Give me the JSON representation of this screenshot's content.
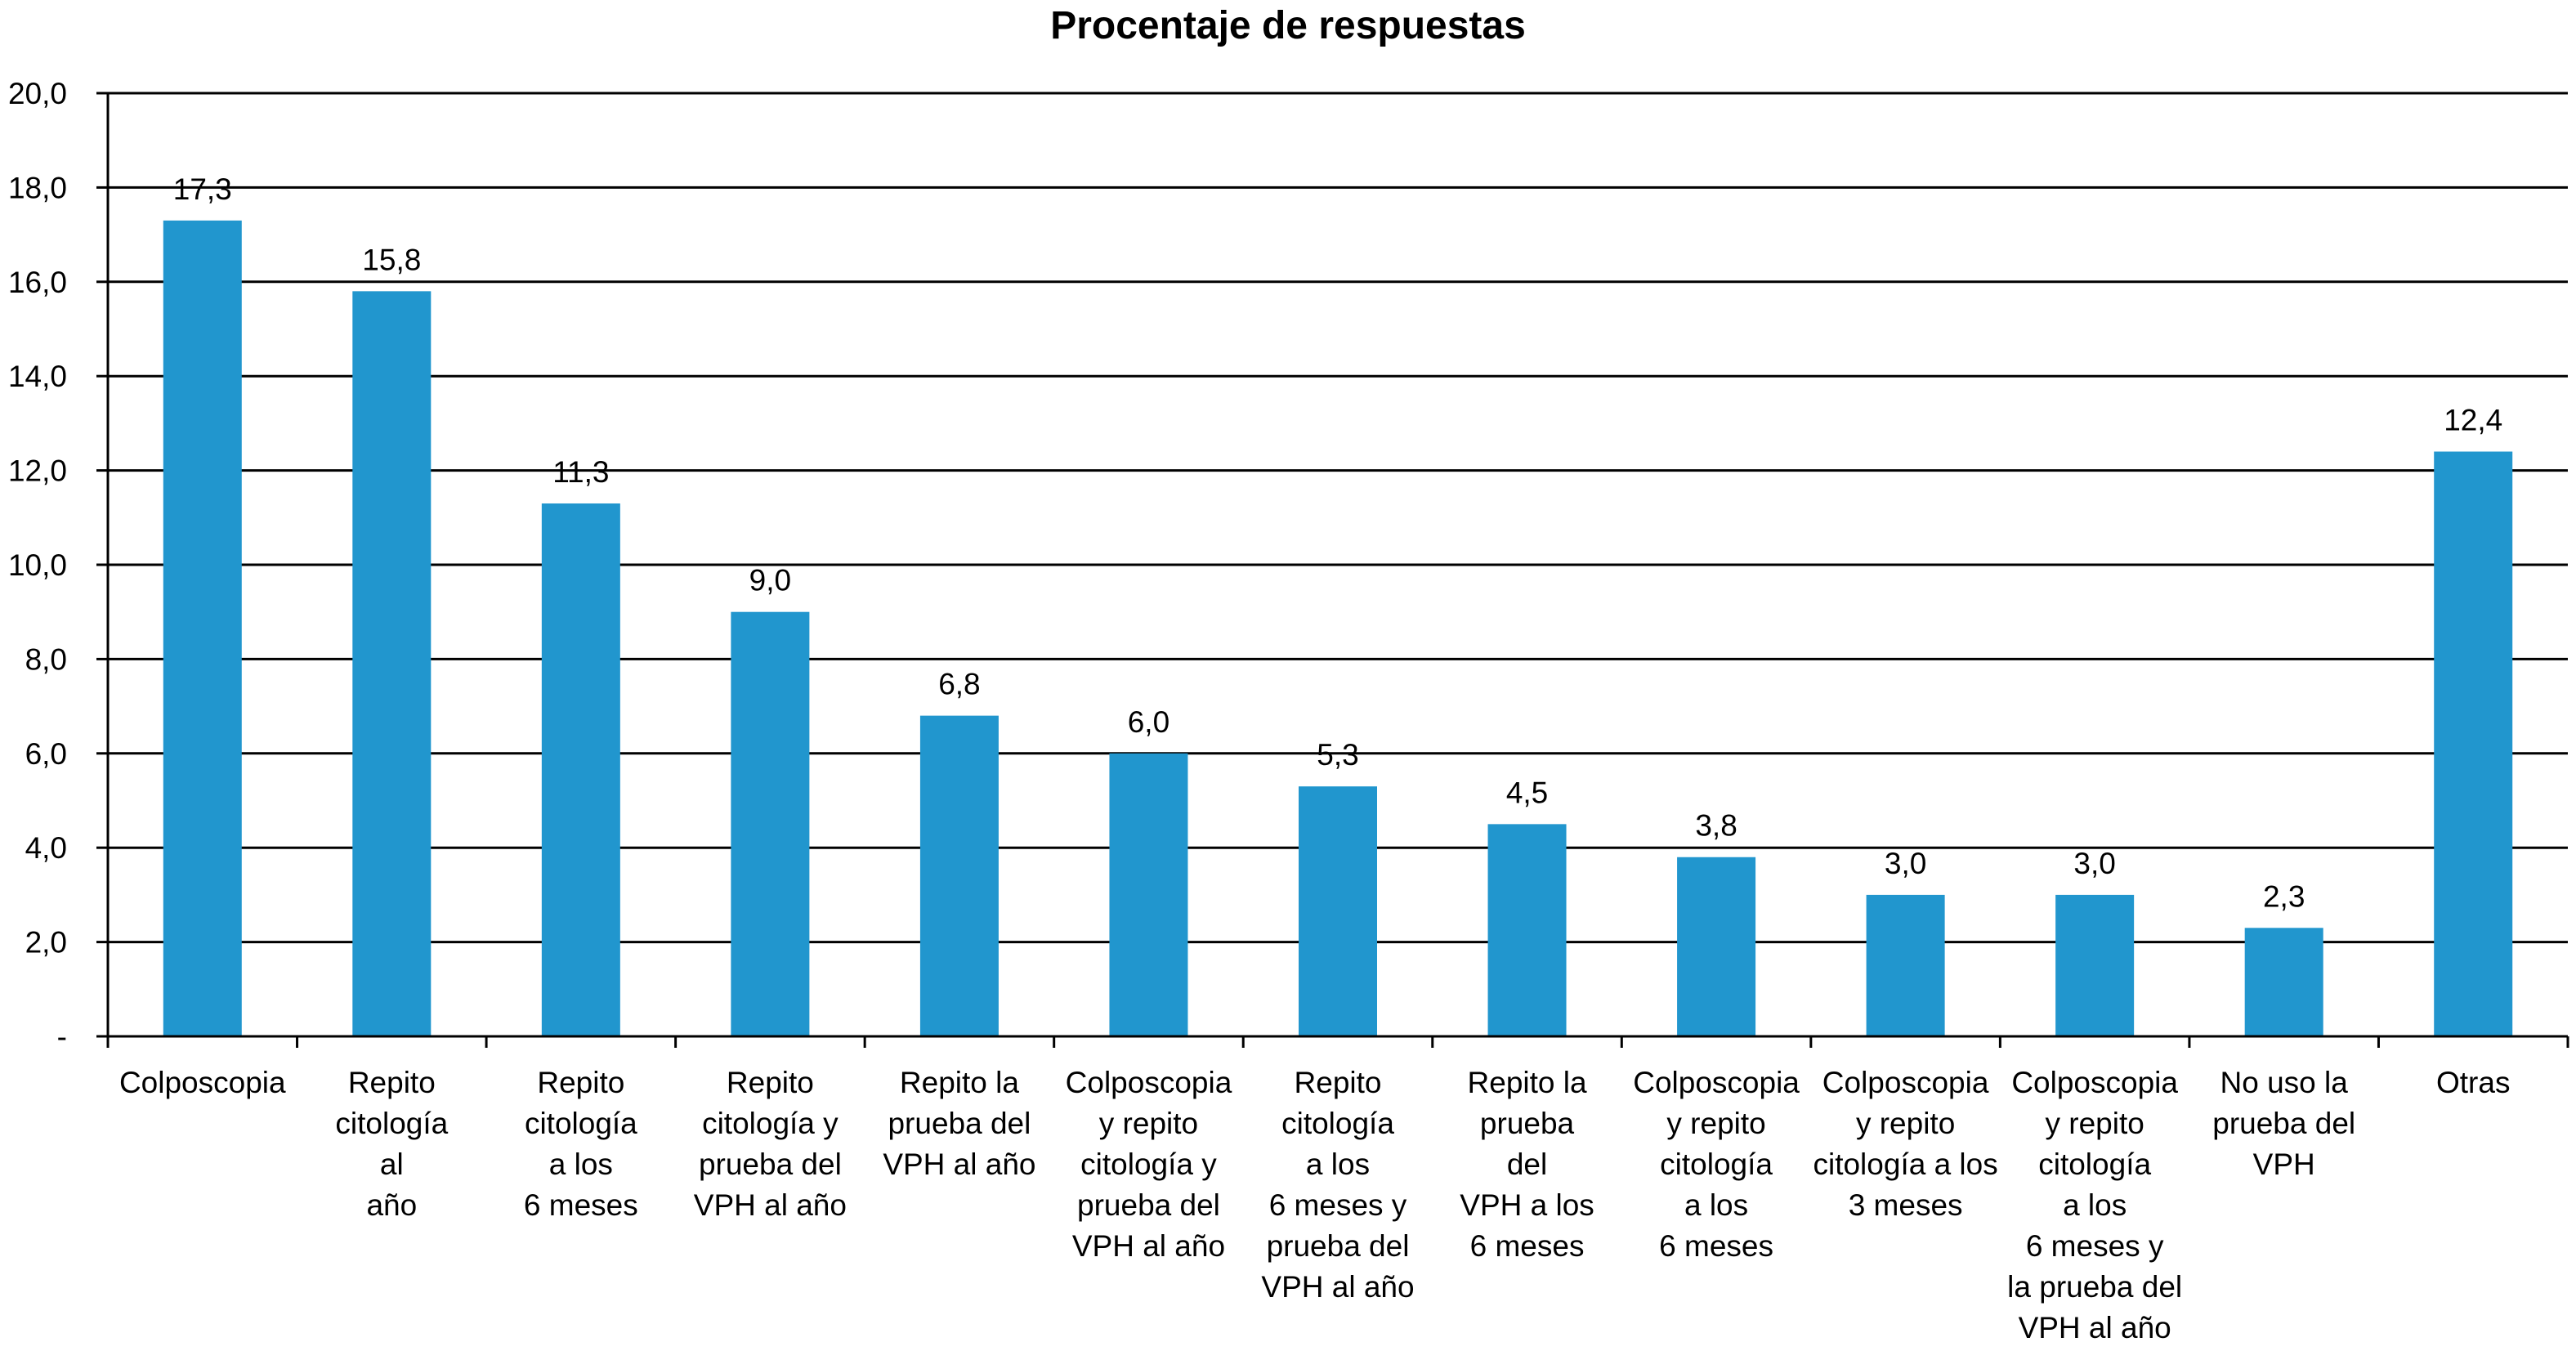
{
  "chart_data": {
    "type": "bar",
    "title": "Procentaje de respuestas",
    "xlabel": "",
    "ylabel": "",
    "ylim": [
      0,
      20
    ],
    "yticks": [
      "-",
      "2,0",
      "4,0",
      "6,0",
      "8,0",
      "10,0",
      "12,0",
      "14,0",
      "16,0",
      "18,0",
      "20,0"
    ],
    "grid": true,
    "bar_color": "#2196CE",
    "categories": [
      [
        "Colposcopia"
      ],
      [
        "Repito",
        "citología",
        "al",
        "año"
      ],
      [
        "Repito",
        "citología",
        "a los",
        "6 meses"
      ],
      [
        "Repito",
        "citología y",
        "prueba del",
        "VPH al año"
      ],
      [
        "Repito la",
        "prueba del",
        "VPH al año"
      ],
      [
        "Colposcopia",
        "y repito",
        "citología y",
        "prueba del",
        "VPH al año"
      ],
      [
        "Repito",
        "citología",
        "a los",
        "6 meses y",
        "prueba del",
        "VPH al año"
      ],
      [
        "Repito la",
        "prueba",
        "del",
        "VPH a los",
        "6 meses"
      ],
      [
        "Colposcopia",
        "y repito",
        "citología",
        "a los",
        "6 meses"
      ],
      [
        "Colposcopia",
        "y repito",
        "citología a los",
        "3 meses"
      ],
      [
        "Colposcopia",
        "y repito",
        "citología",
        "a los",
        "6 meses y",
        "la prueba del",
        "VPH al año"
      ],
      [
        "No uso la",
        "prueba del",
        "VPH"
      ],
      [
        "Otras"
      ]
    ],
    "values": [
      17.3,
      15.8,
      11.3,
      9.0,
      6.8,
      6.0,
      5.3,
      4.5,
      3.8,
      3.0,
      3.0,
      2.3,
      12.4
    ],
    "value_labels": [
      "17,3",
      "15,8",
      "11,3",
      "9,0",
      "6,8",
      "6,0",
      "5,3",
      "4,5",
      "3,8",
      "3,0",
      "3,0",
      "2,3",
      "12,4"
    ]
  }
}
